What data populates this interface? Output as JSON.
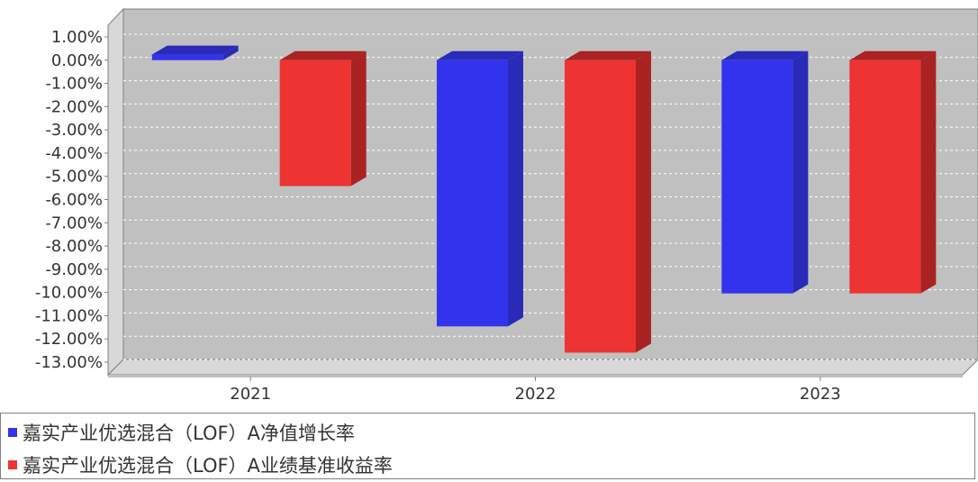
{
  "chart_data": {
    "type": "bar",
    "categories": [
      "2021",
      "2022",
      "2023"
    ],
    "series": [
      {
        "name": "嘉实产业优选混合（LOF）A净值增长率",
        "color": "#3333ee",
        "values": [
          0.24,
          -11.46,
          -10.04
        ]
      },
      {
        "name": "嘉实产业优选混合（LOF）A业绩基准收益率",
        "color": "#ee3333",
        "values": [
          -5.42,
          -12.59,
          -10.04
        ]
      }
    ],
    "yticks": [
      "1.00%",
      "0.00%",
      "-1.00%",
      "-2.00%",
      "-3.00%",
      "-4.00%",
      "-5.00%",
      "-6.00%",
      "-7.00%",
      "-8.00%",
      "-9.00%",
      "-10.00%",
      "-11.00%",
      "-12.00%",
      "-13.00%"
    ],
    "ylim": [
      -13,
      1
    ],
    "grid": true,
    "legend_position": "bottom",
    "title": "",
    "xlabel": "",
    "ylabel": ""
  }
}
